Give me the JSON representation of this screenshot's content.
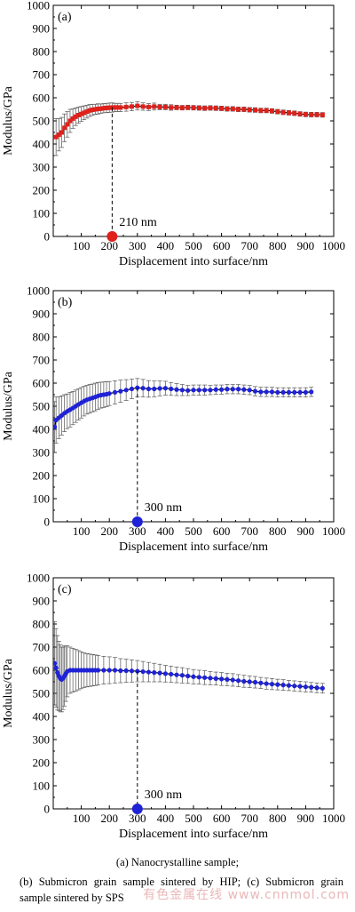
{
  "chart_data": [
    {
      "type": "scatter",
      "panel_label": "(a)",
      "xlabel": "Displacement into surface/nm",
      "ylabel": "Modulus/GPa",
      "xlim": [
        0,
        1000
      ],
      "ylim": [
        0,
        1000
      ],
      "xticks": [
        100,
        200,
        300,
        400,
        500,
        600,
        700,
        800,
        900,
        1000
      ],
      "yticks": [
        0,
        100,
        200,
        300,
        400,
        500,
        600,
        700,
        800,
        900,
        1000
      ],
      "color": "#e0201b",
      "marker_shape": "square",
      "annotation": {
        "x": 210,
        "y": 0,
        "text": "210 nm"
      },
      "series": {
        "x": [
          10,
          20,
          30,
          40,
          50,
          60,
          70,
          80,
          90,
          100,
          110,
          120,
          130,
          140,
          150,
          160,
          170,
          180,
          190,
          200,
          210,
          220,
          230,
          240,
          260,
          280,
          300,
          320,
          340,
          360,
          380,
          400,
          420,
          440,
          460,
          480,
          500,
          520,
          540,
          560,
          580,
          600,
          620,
          640,
          660,
          680,
          700,
          720,
          740,
          760,
          780,
          800,
          820,
          840,
          860,
          880,
          900,
          920,
          940,
          960
        ],
        "y": [
          430,
          440,
          450,
          470,
          485,
          500,
          510,
          518,
          525,
          530,
          535,
          540,
          545,
          548,
          550,
          552,
          553,
          555,
          556,
          557,
          558,
          558,
          558,
          558,
          560,
          562,
          565,
          562,
          560,
          562,
          560,
          560,
          558,
          558,
          557,
          558,
          557,
          556,
          555,
          556,
          555,
          554,
          552,
          552,
          550,
          550,
          548,
          547,
          545,
          545,
          543,
          540,
          537,
          535,
          533,
          530,
          528,
          527,
          527,
          526
        ],
        "err": [
          80,
          70,
          65,
          60,
          55,
          50,
          42,
          38,
          35,
          32,
          30,
          28,
          26,
          24,
          22,
          22,
          20,
          20,
          20,
          20,
          20,
          18,
          18,
          18,
          18,
          18,
          18,
          16,
          15,
          15,
          12,
          12,
          12,
          10,
          10,
          10,
          10,
          10,
          10,
          10,
          10,
          10,
          10,
          10,
          10,
          10,
          10,
          10,
          10,
          10,
          10,
          10,
          10,
          10,
          10,
          10,
          10,
          10,
          10,
          10
        ]
      }
    },
    {
      "type": "scatter",
      "panel_label": "(b)",
      "xlabel": "Displacement into surface/nm",
      "ylabel": "Modulus/GPa",
      "xlim": [
        0,
        1000
      ],
      "ylim": [
        0,
        1000
      ],
      "xticks": [
        100,
        200,
        300,
        400,
        500,
        600,
        700,
        800,
        900,
        1000
      ],
      "yticks": [
        0,
        100,
        200,
        300,
        400,
        500,
        600,
        700,
        800,
        900,
        1000
      ],
      "color": "#1f22d6",
      "marker_shape": "circle",
      "annotation": {
        "x": 300,
        "y": 0,
        "text": "300 nm"
      },
      "series": {
        "x": [
          5,
          10,
          20,
          30,
          40,
          50,
          60,
          70,
          80,
          90,
          100,
          110,
          120,
          130,
          140,
          150,
          160,
          170,
          180,
          190,
          200,
          220,
          240,
          260,
          280,
          300,
          320,
          340,
          360,
          380,
          400,
          420,
          440,
          460,
          480,
          500,
          520,
          540,
          560,
          580,
          600,
          620,
          640,
          660,
          680,
          700,
          720,
          740,
          760,
          780,
          800,
          820,
          840,
          860,
          880,
          900,
          920
        ],
        "y": [
          410,
          440,
          450,
          460,
          470,
          478,
          485,
          492,
          500,
          508,
          515,
          522,
          528,
          532,
          536,
          540,
          545,
          548,
          550,
          552,
          555,
          560,
          565,
          570,
          575,
          580,
          578,
          575,
          575,
          577,
          578,
          575,
          572,
          570,
          568,
          570,
          570,
          570,
          570,
          572,
          572,
          574,
          574,
          574,
          572,
          570,
          565,
          562,
          562,
          562,
          560,
          560,
          560,
          560,
          560,
          560,
          562
        ],
        "err": [
          110,
          100,
          90,
          85,
          80,
          75,
          75,
          72,
          70,
          68,
          66,
          64,
          62,
          62,
          60,
          60,
          58,
          56,
          55,
          54,
          52,
          50,
          48,
          45,
          42,
          40,
          38,
          36,
          34,
          32,
          30,
          28,
          26,
          24,
          22,
          22,
          22,
          22,
          20,
          20,
          20,
          20,
          20,
          20,
          20,
          20,
          20,
          20,
          20,
          20,
          20,
          20,
          20,
          20,
          20,
          20,
          20
        ]
      }
    },
    {
      "type": "scatter",
      "panel_label": "(c)",
      "xlabel": "Displacement into surface/nm",
      "ylabel": "Modulus/GPa",
      "xlim": [
        0,
        1000
      ],
      "ylim": [
        0,
        1000
      ],
      "xticks": [
        100,
        200,
        300,
        400,
        500,
        600,
        700,
        800,
        900,
        1000
      ],
      "yticks": [
        0,
        100,
        200,
        300,
        400,
        500,
        600,
        700,
        800,
        900,
        1000
      ],
      "color": "#1f22d6",
      "marker_shape": "circle",
      "annotation": {
        "x": 300,
        "y": 0,
        "text": "300 nm"
      },
      "series": {
        "x": [
          5,
          10,
          15,
          20,
          25,
          30,
          35,
          40,
          45,
          50,
          60,
          70,
          80,
          90,
          100,
          110,
          120,
          130,
          140,
          150,
          160,
          180,
          200,
          220,
          240,
          260,
          280,
          300,
          320,
          340,
          360,
          380,
          400,
          420,
          440,
          460,
          480,
          500,
          520,
          540,
          560,
          580,
          600,
          620,
          640,
          660,
          680,
          700,
          720,
          740,
          760,
          780,
          800,
          820,
          840,
          860,
          880,
          900,
          920,
          940,
          960
        ],
        "y": [
          630,
          610,
          590,
          575,
          565,
          560,
          565,
          575,
          585,
          595,
          600,
          600,
          600,
          600,
          600,
          600,
          600,
          600,
          600,
          600,
          600,
          600,
          600,
          600,
          598,
          598,
          597,
          596,
          594,
          592,
          590,
          588,
          585,
          583,
          580,
          578,
          575,
          572,
          570,
          568,
          566,
          564,
          562,
          560,
          558,
          555,
          552,
          550,
          548,
          545,
          542,
          540,
          538,
          536,
          534,
          532,
          530,
          528,
          526,
          524,
          522
        ],
        "err": [
          180,
          170,
          160,
          150,
          145,
          140,
          135,
          130,
          120,
          110,
          100,
          95,
          90,
          85,
          80,
          75,
          72,
          70,
          68,
          66,
          64,
          60,
          58,
          55,
          52,
          50,
          48,
          46,
          44,
          42,
          40,
          38,
          36,
          35,
          34,
          33,
          32,
          31,
          30,
          30,
          29,
          28,
          28,
          27,
          27,
          26,
          26,
          25,
          25,
          24,
          24,
          24,
          23,
          23,
          22,
          22,
          22,
          22,
          21,
          21,
          21
        ]
      }
    }
  ],
  "captions": {
    "line1": "(a) Nanocrystalline sample;",
    "line2": "(b) Submicron grain sample sintered by HIP; (c) Submicron grain sample sintered by SPS"
  },
  "watermark": "有色金属在线 www.cnnmol.com"
}
